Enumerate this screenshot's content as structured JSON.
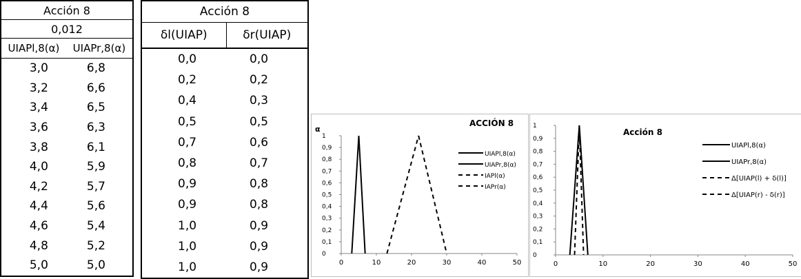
{
  "table1": {
    "title": "Acción 8",
    "value": "0,012",
    "col_headers": [
      "UIAPl,8(α)",
      "UIAPr,8(α)"
    ],
    "rows": [
      [
        "3,0",
        "6,8"
      ],
      [
        "3,2",
        "6,6"
      ],
      [
        "3,4",
        "6,5"
      ],
      [
        "3,6",
        "6,3"
      ],
      [
        "3,8",
        "6,1"
      ],
      [
        "4,0",
        "5,9"
      ],
      [
        "4,2",
        "5,7"
      ],
      [
        "4,4",
        "5,6"
      ],
      [
        "4,6",
        "5,4"
      ],
      [
        "4,8",
        "5,2"
      ],
      [
        "5,0",
        "5,0"
      ]
    ]
  },
  "table2": {
    "title": "Acción 8",
    "col_headers": [
      "δl(UIAP)",
      "δr(UIAP)"
    ],
    "rows": [
      [
        "0,0",
        "0,0"
      ],
      [
        "0,2",
        "0,2"
      ],
      [
        "0,4",
        "0,3"
      ],
      [
        "0,5",
        "0,5"
      ],
      [
        "0,7",
        "0,6"
      ],
      [
        "0,8",
        "0,7"
      ],
      [
        "0,9",
        "0,8"
      ],
      [
        "0,9",
        "0,8"
      ],
      [
        "1,0",
        "0,9"
      ],
      [
        "1,0",
        "0,9"
      ],
      [
        "1,0",
        "0,9"
      ]
    ]
  },
  "chart_data": [
    {
      "type": "line",
      "title": "ACCIÓN 8",
      "ylabel": "α",
      "xlim": [
        0,
        50
      ],
      "ylim": [
        0,
        1
      ],
      "x_ticks": [
        0,
        10,
        20,
        30,
        40,
        50
      ],
      "y_ticks": [
        "0",
        "0,1",
        "0,2",
        "0,3",
        "0,4",
        "0,5",
        "0,6",
        "0,7",
        "0,8",
        "0,9",
        "1"
      ],
      "legend_position": "right",
      "series": [
        {
          "name": "UIAPl,8(α)",
          "style": "solid",
          "x": [
            3.0,
            5.0
          ],
          "y": [
            0,
            1
          ]
        },
        {
          "name": "UIAPr,8(α)",
          "style": "solid",
          "x": [
            5.0,
            6.8
          ],
          "y": [
            1,
            0
          ]
        },
        {
          "name": "IAPl(α)",
          "style": "dashed",
          "x": [
            13.0,
            22.0
          ],
          "y": [
            0,
            1
          ]
        },
        {
          "name": "IAPr(α)",
          "style": "dashed",
          "x": [
            22.0,
            30.0
          ],
          "y": [
            1,
            0
          ]
        }
      ]
    },
    {
      "type": "line",
      "title": "Acción 8",
      "ylabel": "",
      "xlim": [
        0,
        50
      ],
      "ylim": [
        0,
        1
      ],
      "x_ticks": [
        0,
        10,
        20,
        30,
        40,
        50
      ],
      "y_ticks": [
        "0",
        "0,1",
        "0,2",
        "0,3",
        "0,4",
        "0,5",
        "0,6",
        "0,7",
        "0,8",
        "0,9",
        "1"
      ],
      "legend_position": "right",
      "series": [
        {
          "name": "UIAPl,8(α)",
          "style": "solid",
          "x": [
            3.0,
            5.0
          ],
          "y": [
            0,
            1
          ]
        },
        {
          "name": "UIAPr,8(α)",
          "style": "solid",
          "x": [
            5.0,
            6.8
          ],
          "y": [
            1,
            0
          ]
        },
        {
          "name": "Δ[UIAP(l) + δ(l)]",
          "style": "dashed",
          "x": [
            4.0,
            5.0
          ],
          "y": [
            0,
            1
          ]
        },
        {
          "name": "Δ[UIAP(r) - δ(r)]",
          "style": "dashed",
          "x": [
            5.0,
            5.9
          ],
          "y": [
            1,
            0
          ]
        }
      ]
    }
  ]
}
